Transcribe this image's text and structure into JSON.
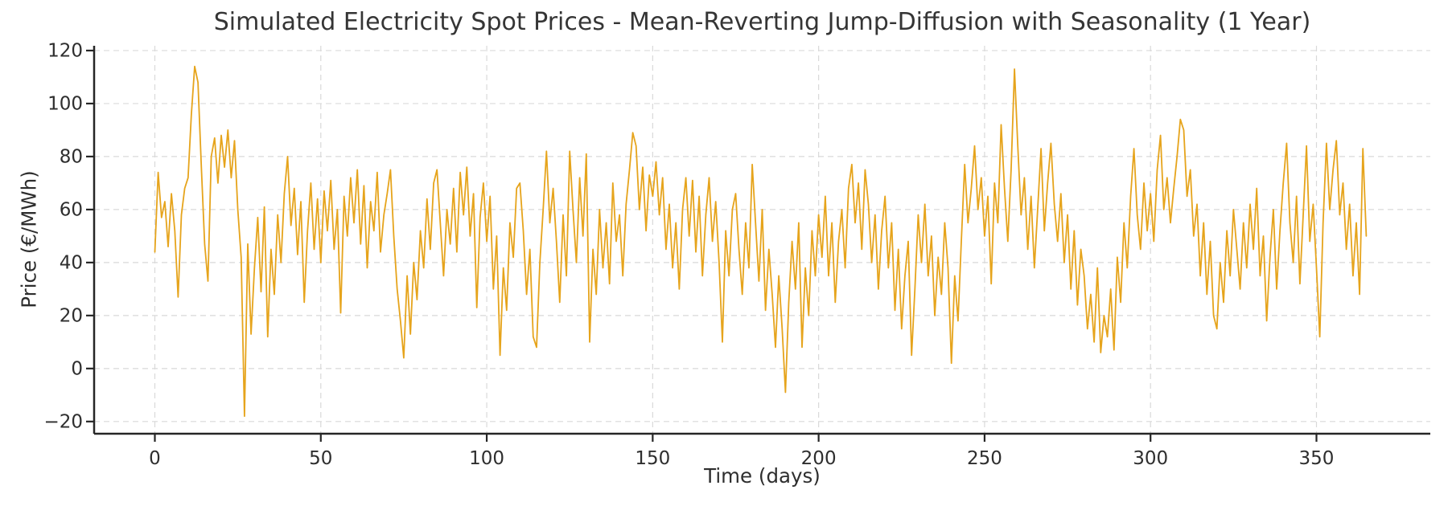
{
  "figure": {
    "background": "#ffffff",
    "text_color": "#2e2e2e",
    "grid_color": "#d9d9d9",
    "spine_color": "#262626"
  },
  "chart_data": {
    "type": "line",
    "title": "Simulated Electricity Spot Prices - Mean-Reverting Jump-Diffusion with Seasonality (1 Year)",
    "xlabel": "Time (days)",
    "ylabel": "Price (€/MWh)",
    "legend": "none",
    "grid": true,
    "grid_style": "dashed",
    "xlim": [
      -18.3,
      384.3
    ],
    "ylim": [
      -24.6,
      121.8
    ],
    "xticks": [
      0,
      50,
      100,
      150,
      200,
      250,
      300,
      350
    ],
    "yticks": [
      -20,
      0,
      20,
      40,
      60,
      80,
      100,
      120
    ],
    "line_color": "#E6A41C",
    "line_width": 1.8,
    "series": [
      {
        "name": "spot_price",
        "x_start": 0,
        "x_step": 1,
        "values": [
          44,
          74,
          57,
          63,
          46,
          66,
          52,
          27,
          58,
          68,
          72,
          96,
          114,
          108,
          76,
          47,
          33,
          80,
          87,
          70,
          88,
          76,
          90,
          72,
          86,
          60,
          42,
          -18,
          47,
          13,
          38,
          57,
          29,
          61,
          12,
          45,
          28,
          58,
          40,
          66,
          80,
          54,
          68,
          43,
          63,
          25,
          52,
          70,
          45,
          64,
          40,
          67,
          52,
          71,
          45,
          60,
          21,
          65,
          50,
          72,
          55,
          75,
          47,
          69,
          38,
          63,
          52,
          74,
          44,
          58,
          66,
          75,
          50,
          30,
          18,
          4,
          35,
          13,
          40,
          26,
          52,
          38,
          64,
          45,
          70,
          75,
          55,
          35,
          60,
          47,
          68,
          44,
          74,
          58,
          76,
          50,
          66,
          23,
          57,
          70,
          48,
          65,
          30,
          50,
          5,
          38,
          22,
          55,
          42,
          68,
          70,
          52,
          28,
          45,
          12,
          8,
          40,
          60,
          82,
          55,
          68,
          48,
          25,
          58,
          35,
          82,
          60,
          40,
          72,
          50,
          81,
          10,
          45,
          28,
          60,
          38,
          55,
          32,
          70,
          48,
          58,
          35,
          62,
          75,
          89,
          84,
          60,
          76,
          52,
          73,
          65,
          78,
          58,
          72,
          45,
          62,
          38,
          55,
          30,
          60,
          72,
          50,
          71,
          44,
          65,
          35,
          58,
          72,
          48,
          63,
          40,
          10,
          52,
          35,
          60,
          66,
          45,
          28,
          55,
          38,
          77,
          55,
          33,
          60,
          22,
          45,
          28,
          8,
          35,
          15,
          -9,
          25,
          48,
          30,
          55,
          8,
          38,
          20,
          52,
          35,
          58,
          42,
          65,
          35,
          55,
          25,
          48,
          60,
          38,
          68,
          77,
          55,
          70,
          45,
          75,
          62,
          40,
          58,
          30,
          52,
          65,
          38,
          55,
          22,
          45,
          15,
          35,
          48,
          5,
          30,
          58,
          40,
          62,
          35,
          50,
          20,
          42,
          28,
          55,
          38,
          2,
          35,
          18,
          48,
          77,
          55,
          68,
          84,
          60,
          72,
          50,
          65,
          32,
          70,
          55,
          92,
          68,
          48,
          75,
          113,
          84,
          58,
          72,
          45,
          65,
          38,
          60,
          83,
          52,
          70,
          85,
          62,
          48,
          66,
          40,
          58,
          30,
          52,
          24,
          45,
          35,
          15,
          28,
          10,
          38,
          6,
          20,
          12,
          30,
          7,
          42,
          25,
          55,
          38,
          65,
          83,
          58,
          45,
          70,
          52,
          66,
          48,
          75,
          88,
          60,
          72,
          55,
          68,
          80,
          94,
          90,
          65,
          75,
          50,
          62,
          35,
          55,
          28,
          48,
          20,
          15,
          40,
          25,
          52,
          35,
          60,
          45,
          30,
          55,
          38,
          62,
          45,
          68,
          35,
          50,
          18,
          42,
          60,
          30,
          52,
          70,
          85,
          55,
          40,
          65,
          32,
          58,
          84,
          48,
          62,
          38,
          12,
          55,
          85,
          60,
          75,
          86,
          58,
          70,
          45,
          62,
          35,
          55,
          28,
          83,
          50
        ]
      }
    ]
  }
}
